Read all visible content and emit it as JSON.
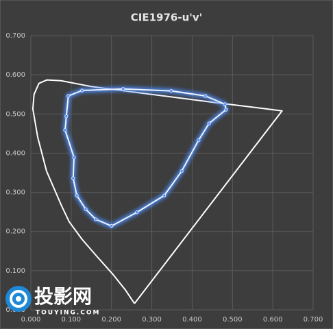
{
  "chart_data": {
    "type": "line",
    "title": "CIE1976-u'v'",
    "xlim": [
      0,
      0.7
    ],
    "ylim": [
      0,
      0.7
    ],
    "grid": true,
    "xticks": [
      {
        "value": 0,
        "label": "0.000"
      },
      {
        "value": 0.1,
        "label": "0.100"
      },
      {
        "value": 0.2,
        "label": "0.200"
      },
      {
        "value": 0.3,
        "label": "0.300"
      },
      {
        "value": 0.4,
        "label": "0.400"
      },
      {
        "value": 0.5,
        "label": "0.500"
      },
      {
        "value": 0.6,
        "label": "0.600"
      },
      {
        "value": 0.7,
        "label": "0.700"
      }
    ],
    "yticks": [
      {
        "value": 0,
        "label": "0.000"
      },
      {
        "value": 0.1,
        "label": "0.100"
      },
      {
        "value": 0.2,
        "label": "0.200"
      },
      {
        "value": 0.3,
        "label": "0.300"
      },
      {
        "value": 0.4,
        "label": "0.400"
      },
      {
        "value": 0.5,
        "label": "0.500"
      },
      {
        "value": 0.6,
        "label": "0.600"
      },
      {
        "value": 0.7,
        "label": "0.700"
      }
    ],
    "series": [
      {
        "color": "#ffffff",
        "markers": false,
        "x": [
          0.257,
          0.235,
          0.204,
          0.165,
          0.127,
          0.095,
          0.076,
          0.039,
          0.017,
          0.005,
          0.008,
          0.02,
          0.04,
          0.075,
          0.15,
          0.3,
          0.45,
          0.623,
          0.257
        ],
        "values": [
          0.016,
          0.05,
          0.09,
          0.135,
          0.18,
          0.225,
          0.266,
          0.354,
          0.441,
          0.513,
          0.55,
          0.578,
          0.587,
          0.585,
          0.57,
          0.55,
          0.53,
          0.508,
          0.016
        ]
      },
      {
        "color": "#eef4ff",
        "glow": "#4f8fff",
        "markers": true,
        "x": [
          0.2,
          0.263,
          0.331,
          0.374,
          0.416,
          0.442,
          0.484,
          0.481,
          0.433,
          0.348,
          0.229,
          0.127,
          0.093,
          0.088,
          0.085,
          0.107,
          0.105,
          0.114,
          0.136,
          0.161,
          0.2
        ],
        "values": [
          0.214,
          0.249,
          0.292,
          0.354,
          0.433,
          0.476,
          0.511,
          0.525,
          0.546,
          0.559,
          0.564,
          0.56,
          0.546,
          0.494,
          0.459,
          0.389,
          0.336,
          0.292,
          0.257,
          0.231,
          0.214
        ]
      }
    ]
  },
  "watermark": {
    "name": "投影网",
    "url": "TOUYING.COM"
  }
}
